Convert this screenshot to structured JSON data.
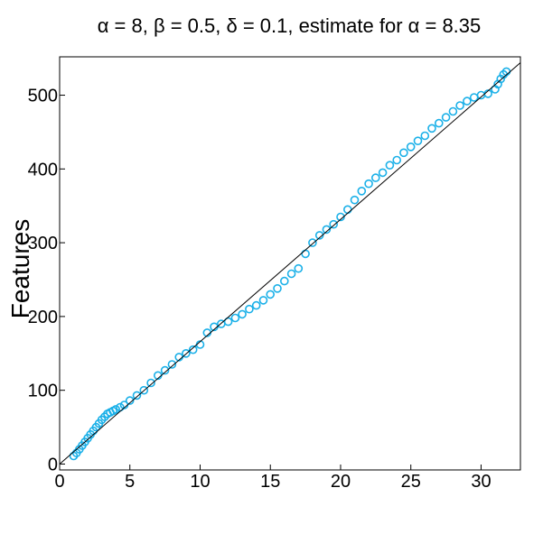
{
  "chart_data": {
    "type": "scatter",
    "title": "α = 8, β = 0.5, δ = 0.1, estimate for α = 8.35",
    "xlabel": "",
    "ylabel": "Features",
    "xlim": [
      0,
      32.8
    ],
    "ylim": [
      -8,
      552
    ],
    "x_ticks": [
      0,
      5,
      10,
      15,
      20,
      25,
      30
    ],
    "y_ticks": [
      0,
      100,
      200,
      300,
      400,
      500
    ],
    "grid": false,
    "legend": "none",
    "colors": {
      "points": "#1ab0e8",
      "fit_line": "#000000",
      "axes": "#000000"
    },
    "fit_line": {
      "x": [
        0,
        32.8
      ],
      "y": [
        0,
        544
      ]
    },
    "series": [
      {
        "x": [
          1.0,
          1.2,
          1.4,
          1.6,
          1.8,
          2.0,
          2.2,
          2.4,
          2.6,
          2.8,
          3.0,
          3.2,
          3.4,
          3.6,
          3.8,
          4.0,
          4.3,
          4.6,
          5.0,
          5.5,
          6.0,
          6.5,
          7.0,
          7.5,
          8.0,
          8.5,
          9.0,
          9.5,
          10.0,
          10.5,
          11.0,
          11.5,
          12.0,
          12.5,
          13.0,
          13.5,
          14.0,
          14.5,
          15.0,
          15.5,
          16.0,
          16.5,
          17.0,
          17.5,
          18.0,
          18.5,
          19.0,
          19.5,
          20.0,
          20.5,
          21.0,
          21.5,
          22.0,
          22.5,
          23.0,
          23.5,
          24.0,
          24.5,
          25.0,
          25.5,
          26.0,
          26.5,
          27.0,
          27.5,
          28.0,
          28.5,
          29.0,
          29.5,
          30.0,
          30.5,
          31.0,
          31.2,
          31.4,
          31.6,
          31.8
        ],
        "y": [
          11,
          15,
          20,
          25,
          30,
          35,
          40,
          45,
          50,
          55,
          60,
          64,
          68,
          70,
          72,
          74,
          77,
          80,
          86,
          93,
          100,
          110,
          120,
          127,
          135,
          145,
          150,
          155,
          162,
          178,
          186,
          190,
          193,
          198,
          203,
          210,
          215,
          222,
          230,
          238,
          248,
          258,
          265,
          285,
          300,
          310,
          318,
          325,
          335,
          345,
          358,
          370,
          380,
          388,
          395,
          405,
          412,
          422,
          430,
          438,
          445,
          455,
          462,
          470,
          478,
          486,
          492,
          497,
          500,
          502,
          508,
          515,
          522,
          528,
          532
        ]
      }
    ]
  }
}
